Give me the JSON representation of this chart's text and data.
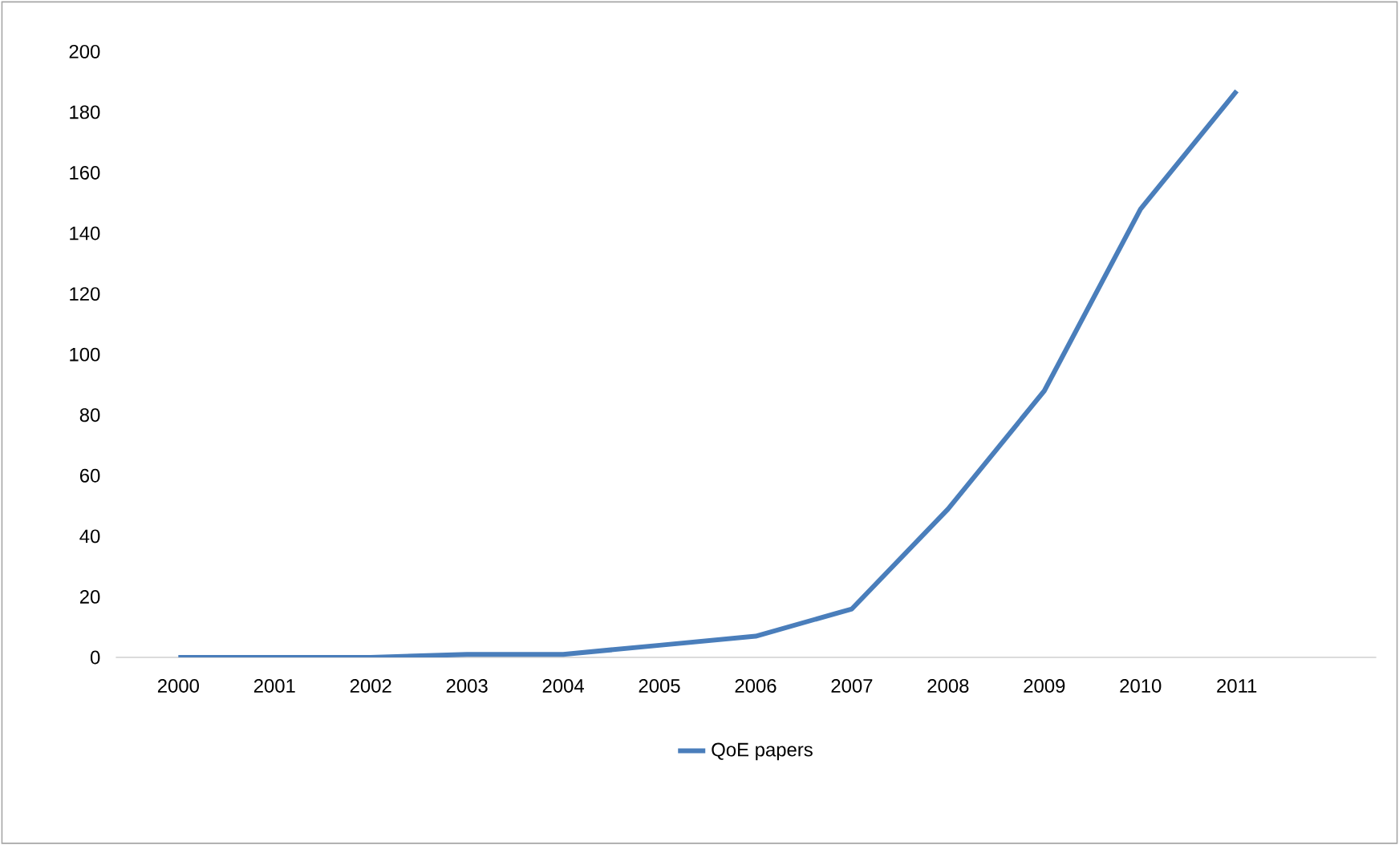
{
  "chart_data": {
    "type": "line",
    "categories": [
      "2000",
      "2001",
      "2002",
      "2003",
      "2004",
      "2005",
      "2006",
      "2007",
      "2008",
      "2009",
      "2010",
      "2011"
    ],
    "series": [
      {
        "name": "QoE papers",
        "color": "#4a7ebb",
        "values": [
          0,
          0,
          0,
          1,
          1,
          4,
          7,
          16,
          49,
          88,
          148,
          187
        ]
      }
    ],
    "ylim": [
      0,
      200
    ],
    "yticks": [
      0,
      20,
      40,
      60,
      80,
      100,
      120,
      140,
      160,
      180,
      200
    ],
    "grid": false,
    "legend": "bottom",
    "marker": "none",
    "line_style": "solid"
  }
}
